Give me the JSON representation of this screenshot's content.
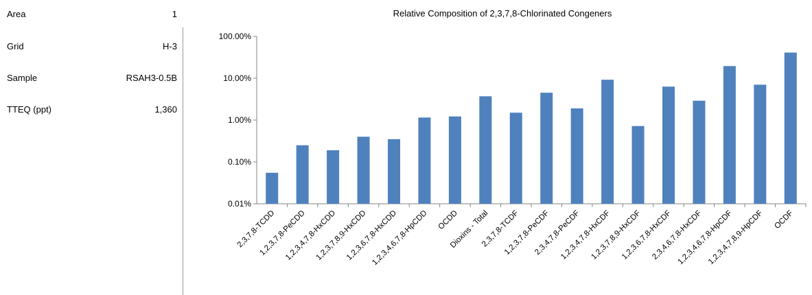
{
  "info": {
    "rows": [
      {
        "label": "Area",
        "value": "1"
      },
      {
        "label": "Grid",
        "value": "H-3"
      },
      {
        "label": "Sample",
        "value": "RSAH3-0.5B"
      },
      {
        "label": "TTEQ (ppt)",
        "value": "1,360"
      }
    ]
  },
  "chart_data": {
    "type": "bar",
    "title": "Relative Composition of 2,3,7,8-Chlorinated Congeners",
    "xlabel": "",
    "ylabel": "",
    "yscale": "log",
    "ylim": [
      0.01,
      100
    ],
    "yticks": [
      "100.00%",
      "10.00%",
      "1.00%",
      "0.10%",
      "0.01%"
    ],
    "yticks_values": [
      100,
      10,
      1,
      0.1,
      0.01
    ],
    "categories": [
      "2,3,7,8-TCDD",
      "1,2,3,7,8-PeCDD",
      "1,2,3,4,7,8-HxCDD",
      "1,2,3,7,8,9-HxCDD",
      "1,2,3,6,7,8-HxCDD",
      "1,2,3,4,6,7,8-HpCDD",
      "OCDD",
      "Dioxins - Total",
      "2,3,7,8-TCDF",
      "1,2,3,7,8-PeCDF",
      "2,3,4,7,8-PeCDF",
      "1,2,3,4,7,8-HxCDF",
      "1,2,3,7,8,9-HxCDF",
      "1,2,3,6,7,8-HxCDF",
      "2,3,4,6,7,8-HxCDF",
      "1,2,3,4,6,7,8-HpCDF",
      "1,2,3,4,7,8,9-HpCDF",
      "OCDF"
    ],
    "values": [
      0.055,
      0.25,
      0.19,
      0.4,
      0.35,
      1.15,
      1.22,
      3.7,
      1.5,
      4.5,
      1.9,
      9.2,
      0.72,
      6.3,
      2.9,
      19.5,
      7.0,
      41.0
    ],
    "bar_color": "#4f81bd",
    "grid": false,
    "legend": "none"
  }
}
